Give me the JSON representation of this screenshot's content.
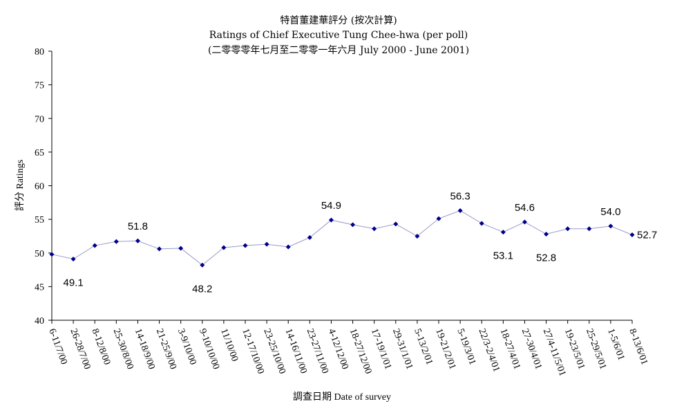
{
  "chart_data": {
    "type": "line",
    "title_lines": [
      "特首董建華評分 (按次計算)",
      "Ratings of Chief Executive Tung Chee-hwa (per poll)",
      "(二零零零年七月至二零零一年六月 July 2000 - June 2001)"
    ],
    "xlabel": "調查日期 Date of survey",
    "ylabel": "評分 Ratings",
    "ylim": [
      40,
      80
    ],
    "yticks": [
      40,
      45,
      50,
      55,
      60,
      65,
      70,
      75,
      80
    ],
    "grid": false,
    "legend": "none",
    "categories": [
      "6-11/7/00",
      "26-28/7/00",
      "8-12/8/00",
      "25-30/8/00",
      "14-18/9/00",
      "21-25/9/00",
      "3-9/10/00",
      "9-10/10/00",
      "11/10/00",
      "12-17/10/00",
      "23-25/10/00",
      "14-16/11/00",
      "23-27/11/00",
      "4-12/12/00",
      "18-27/12/00",
      "17-19/1/01",
      "29-31/1/01",
      "5-13/2/01",
      "19-21/2/01",
      "5-19/3/01",
      "22/3-2/4/01",
      "18-27/4/01",
      "27-30/4/01",
      "27/4-11/5/01",
      "19-23/5/01",
      "25-29/5/01",
      "1-5/6/01",
      "8-13/6/01"
    ],
    "series": [
      {
        "values": [
          49.8,
          49.1,
          51.1,
          51.7,
          51.8,
          50.6,
          50.7,
          48.2,
          50.8,
          51.1,
          51.3,
          50.9,
          52.3,
          54.9,
          54.2,
          53.6,
          54.3,
          52.5,
          55.1,
          56.3,
          54.4,
          53.1,
          54.6,
          52.8,
          53.6,
          53.6,
          54.0,
          52.7
        ],
        "color": "#00008B"
      }
    ],
    "data_labels": [
      {
        "index": 1,
        "text": "49.1",
        "position": "below"
      },
      {
        "index": 4,
        "text": "51.8",
        "position": "above"
      },
      {
        "index": 7,
        "text": "48.2",
        "position": "below"
      },
      {
        "index": 13,
        "text": "54.9",
        "position": "above"
      },
      {
        "index": 19,
        "text": "56.3",
        "position": "above"
      },
      {
        "index": 21,
        "text": "53.1",
        "position": "below"
      },
      {
        "index": 22,
        "text": "54.6",
        "position": "above"
      },
      {
        "index": 23,
        "text": "52.8",
        "position": "below"
      },
      {
        "index": 26,
        "text": "54.0",
        "position": "above"
      },
      {
        "index": 27,
        "text": "52.7",
        "position": "right"
      }
    ]
  }
}
